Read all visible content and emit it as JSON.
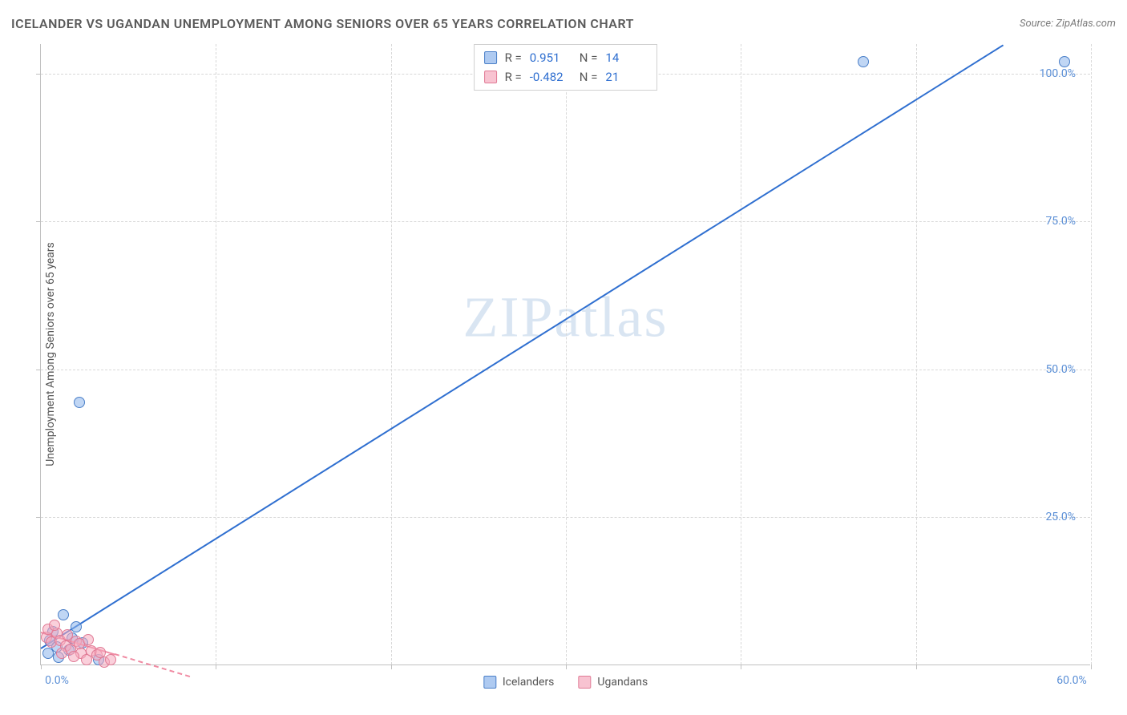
{
  "header": {
    "title": "ICELANDER VS UGANDAN UNEMPLOYMENT AMONG SENIORS OVER 65 YEARS CORRELATION CHART",
    "source": "Source: ZipAtlas.com"
  },
  "watermark": "ZIPatlas",
  "chart": {
    "type": "scatter",
    "y_axis_label": "Unemployment Among Seniors over 65 years",
    "background_color": "#ffffff",
    "grid_color": "#d8d8d8",
    "axis_color": "#c0c0c0",
    "tick_label_color": "#5b8fd6",
    "tick_fontsize": 14,
    "xlim": [
      0,
      60
    ],
    "ylim": [
      0,
      105
    ],
    "xticks": [
      {
        "v": 0,
        "label": "0.0%"
      },
      {
        "v": 10,
        "label": ""
      },
      {
        "v": 20,
        "label": ""
      },
      {
        "v": 30,
        "label": ""
      },
      {
        "v": 40,
        "label": ""
      },
      {
        "v": 50,
        "label": ""
      },
      {
        "v": 60,
        "label": "60.0%"
      }
    ],
    "yticks": [
      {
        "v": 25,
        "label": "25.0%"
      },
      {
        "v": 50,
        "label": "50.0%"
      },
      {
        "v": 75,
        "label": "75.0%"
      },
      {
        "v": 100,
        "label": "100.0%"
      }
    ],
    "series": [
      {
        "name": "Icelanders",
        "color_fill": "rgba(140,180,235,0.55)",
        "color_stroke": "#4a7fc8",
        "marker_radius": 7,
        "points": [
          {
            "x": 47,
            "y": 102
          },
          {
            "x": 58.5,
            "y": 102
          },
          {
            "x": 2.2,
            "y": 44.5
          },
          {
            "x": 1.3,
            "y": 8.5
          },
          {
            "x": 0.5,
            "y": 4.2
          },
          {
            "x": 0.9,
            "y": 3.1
          },
          {
            "x": 1.8,
            "y": 4.6
          },
          {
            "x": 2.4,
            "y": 3.8
          },
          {
            "x": 3.3,
            "y": 0.9
          },
          {
            "x": 0.4,
            "y": 2.0
          },
          {
            "x": 1.0,
            "y": 1.4
          },
          {
            "x": 1.6,
            "y": 2.6
          },
          {
            "x": 0.7,
            "y": 5.7
          },
          {
            "x": 2.0,
            "y": 6.5
          }
        ],
        "trendline": {
          "x1": 0,
          "y1": 3.0,
          "x2": 55,
          "y2": 105,
          "color": "#2f6fd0",
          "width": 2,
          "dash": false
        }
      },
      {
        "name": "Ugandans",
        "color_fill": "rgba(245,170,190,0.55)",
        "color_stroke": "#e07a95",
        "marker_radius": 7,
        "points": [
          {
            "x": 0.3,
            "y": 4.8
          },
          {
            "x": 0.6,
            "y": 3.9
          },
          {
            "x": 0.9,
            "y": 5.4
          },
          {
            "x": 1.1,
            "y": 4.2
          },
          {
            "x": 1.4,
            "y": 3.3
          },
          {
            "x": 1.7,
            "y": 2.7
          },
          {
            "x": 2.0,
            "y": 4.0
          },
          {
            "x": 2.3,
            "y": 2.1
          },
          {
            "x": 2.6,
            "y": 0.9
          },
          {
            "x": 2.9,
            "y": 2.4
          },
          {
            "x": 3.2,
            "y": 1.8
          },
          {
            "x": 3.6,
            "y": 0.5
          },
          {
            "x": 4.0,
            "y": 1.0
          },
          {
            "x": 0.4,
            "y": 6.1
          },
          {
            "x": 0.8,
            "y": 6.8
          },
          {
            "x": 1.2,
            "y": 2.0
          },
          {
            "x": 1.5,
            "y": 5.1
          },
          {
            "x": 1.9,
            "y": 1.5
          },
          {
            "x": 2.2,
            "y": 3.6
          },
          {
            "x": 2.7,
            "y": 4.3
          },
          {
            "x": 3.4,
            "y": 2.2
          }
        ],
        "trendline_solid": {
          "x1": 0,
          "y1": 5.7,
          "x2": 4.2,
          "y2": 2.0,
          "color": "#f08ba3",
          "width": 2
        },
        "trendline_dash": {
          "x1": 4.2,
          "y1": 2.0,
          "x2": 8.5,
          "y2": -1.8,
          "color": "#f08ba3",
          "width": 2
        }
      }
    ],
    "stats_box": {
      "rows": [
        {
          "swatch": "blue",
          "r_label": "R =",
          "r_value": "0.951",
          "n_label": "N =",
          "n_value": "14"
        },
        {
          "swatch": "pink",
          "r_label": "R =",
          "r_value": "-0.482",
          "n_label": "N =",
          "n_value": "21"
        }
      ]
    },
    "legend": [
      {
        "swatch": "blue",
        "label": "Icelanders"
      },
      {
        "swatch": "pink",
        "label": "Ugandans"
      }
    ]
  }
}
